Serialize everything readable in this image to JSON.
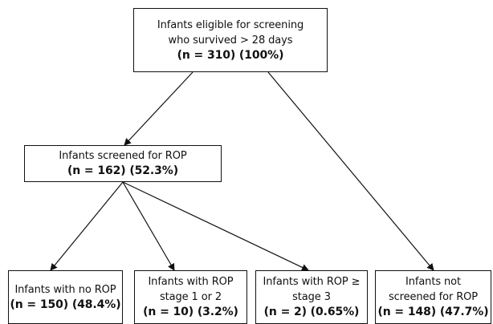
{
  "nodes": {
    "root": {
      "lines": [
        "Infants eligible for screening",
        "who survived > 28 days"
      ],
      "stat": "(n = 310) (100%)"
    },
    "screened": {
      "lines": [
        "Infants screened for ROP"
      ],
      "stat": "(n = 162) (52.3%)"
    },
    "no_rop": {
      "lines": [
        "Infants with no ROP"
      ],
      "stat": "(n = 150) (48.4%)"
    },
    "stage_1_2": {
      "lines": [
        "Infants with ROP",
        "stage 1 or 2"
      ],
      "stat": "(n = 10) (3.2%)"
    },
    "stage_3": {
      "lines": [
        "Infants with ROP ≥",
        "stage 3"
      ],
      "stat": "(n = 2) (0.65%)"
    },
    "not_screened": {
      "lines": [
        "Infants not",
        "screened for ROP"
      ],
      "stat": "(n = 148) (47.7%)"
    }
  },
  "colors": {
    "line": "#111111",
    "box_border": "#111111",
    "text": "#111111",
    "background": "#ffffff"
  }
}
